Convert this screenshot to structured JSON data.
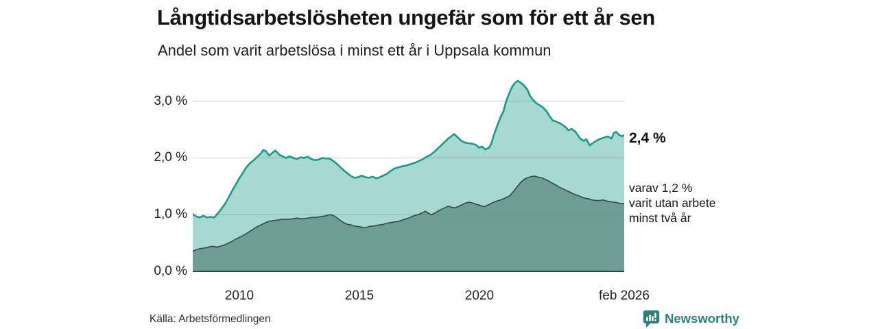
{
  "header": {
    "title": "Långtidsarbetslösheten ungefär som för ett år sen",
    "subtitle": "Andel som varit arbetslösa i minst ett år i Uppsala kommun"
  },
  "annotations": {
    "end_value_label": "2,4 %",
    "sub_label_lines": [
      "varav 1,2 %",
      "varit utan arbete",
      "minst två år"
    ]
  },
  "footer": {
    "source": "Källa: Arbetsförmedlingen",
    "brand": "Newsworthy"
  },
  "colors": {
    "series1_line": "#199a88",
    "series1_fill": "#a7d8d1",
    "series2_line": "#2d4b45",
    "series2_fill": "#6f9d96",
    "gridline": "#d4d4d4",
    "axis_line": "#3d3d3d",
    "brand_teal": "#2e7e7e",
    "text": "#151515"
  },
  "chart_data": {
    "type": "area",
    "title": "Långtidsarbetslösheten ungefär som för ett år sen",
    "subtitle": "Andel som varit arbetslösa i minst ett år i Uppsala kommun",
    "unit": "%",
    "grid": "horizontal",
    "x_range": [
      2008.06,
      2026.03
    ],
    "y_range": [
      0,
      3.5
    ],
    "x_ticks": [
      {
        "label": "2010",
        "year": 2010
      },
      {
        "label": "2015",
        "year": 2015
      },
      {
        "label": "2020",
        "year": 2020
      },
      {
        "label": "feb 2026",
        "year": 2026.03
      }
    ],
    "y_ticks": [
      {
        "label": "0,0 %",
        "value": 0
      },
      {
        "label": "1,0 %",
        "value": 1
      },
      {
        "label": "2,0 %",
        "value": 2
      },
      {
        "label": "3,0 %",
        "value": 3
      }
    ],
    "series": [
      {
        "name": "Andel arbetslösa minst ett år",
        "end_value": 2.4,
        "color": "#199a88",
        "fill": "#a7d8d1",
        "line_width": 2.6,
        "points": [
          [
            2008.06,
            1.01
          ],
          [
            2008.2,
            0.97
          ],
          [
            2008.35,
            0.95
          ],
          [
            2008.5,
            0.98
          ],
          [
            2008.65,
            0.95
          ],
          [
            2008.8,
            0.96
          ],
          [
            2008.95,
            0.95
          ],
          [
            2009.1,
            1.02
          ],
          [
            2009.25,
            1.1
          ],
          [
            2009.4,
            1.19
          ],
          [
            2009.55,
            1.3
          ],
          [
            2009.7,
            1.42
          ],
          [
            2009.85,
            1.53
          ],
          [
            2010.0,
            1.64
          ],
          [
            2010.15,
            1.74
          ],
          [
            2010.3,
            1.84
          ],
          [
            2010.45,
            1.91
          ],
          [
            2010.6,
            1.96
          ],
          [
            2010.75,
            2.02
          ],
          [
            2010.9,
            2.08
          ],
          [
            2011.0,
            2.14
          ],
          [
            2011.1,
            2.12
          ],
          [
            2011.25,
            2.04
          ],
          [
            2011.4,
            2.1
          ],
          [
            2011.5,
            2.13
          ],
          [
            2011.65,
            2.06
          ],
          [
            2011.8,
            2.03
          ],
          [
            2011.95,
            2.0
          ],
          [
            2012.1,
            2.03
          ],
          [
            2012.25,
            2.0
          ],
          [
            2012.4,
            1.98
          ],
          [
            2012.55,
            2.01
          ],
          [
            2012.7,
            2.0
          ],
          [
            2012.85,
            2.02
          ],
          [
            2013.0,
            1.98
          ],
          [
            2013.15,
            1.96
          ],
          [
            2013.3,
            1.97
          ],
          [
            2013.45,
            2.0
          ],
          [
            2013.6,
            1.99
          ],
          [
            2013.75,
            1.99
          ],
          [
            2013.9,
            1.95
          ],
          [
            2014.05,
            1.9
          ],
          [
            2014.2,
            1.84
          ],
          [
            2014.35,
            1.78
          ],
          [
            2014.5,
            1.73
          ],
          [
            2014.65,
            1.68
          ],
          [
            2014.8,
            1.65
          ],
          [
            2014.95,
            1.66
          ],
          [
            2015.1,
            1.69
          ],
          [
            2015.25,
            1.66
          ],
          [
            2015.4,
            1.65
          ],
          [
            2015.55,
            1.67
          ],
          [
            2015.7,
            1.64
          ],
          [
            2015.85,
            1.66
          ],
          [
            2016.0,
            1.69
          ],
          [
            2016.15,
            1.72
          ],
          [
            2016.3,
            1.77
          ],
          [
            2016.45,
            1.81
          ],
          [
            2016.6,
            1.83
          ],
          [
            2016.75,
            1.85
          ],
          [
            2016.9,
            1.86
          ],
          [
            2017.05,
            1.88
          ],
          [
            2017.2,
            1.9
          ],
          [
            2017.35,
            1.92
          ],
          [
            2017.5,
            1.95
          ],
          [
            2017.65,
            1.98
          ],
          [
            2017.8,
            2.02
          ],
          [
            2017.95,
            2.05
          ],
          [
            2018.1,
            2.1
          ],
          [
            2018.25,
            2.16
          ],
          [
            2018.4,
            2.22
          ],
          [
            2018.55,
            2.28
          ],
          [
            2018.7,
            2.34
          ],
          [
            2018.85,
            2.39
          ],
          [
            2018.95,
            2.42
          ],
          [
            2019.1,
            2.36
          ],
          [
            2019.25,
            2.3
          ],
          [
            2019.4,
            2.27
          ],
          [
            2019.55,
            2.26
          ],
          [
            2019.7,
            2.25
          ],
          [
            2019.85,
            2.23
          ],
          [
            2020.0,
            2.18
          ],
          [
            2020.1,
            2.2
          ],
          [
            2020.25,
            2.15
          ],
          [
            2020.4,
            2.18
          ],
          [
            2020.5,
            2.26
          ],
          [
            2020.6,
            2.4
          ],
          [
            2020.75,
            2.58
          ],
          [
            2020.9,
            2.74
          ],
          [
            2021.0,
            2.82
          ],
          [
            2021.1,
            2.98
          ],
          [
            2021.25,
            3.15
          ],
          [
            2021.4,
            3.28
          ],
          [
            2021.5,
            3.33
          ],
          [
            2021.6,
            3.36
          ],
          [
            2021.7,
            3.33
          ],
          [
            2021.85,
            3.28
          ],
          [
            2022.0,
            3.2
          ],
          [
            2022.1,
            3.1
          ],
          [
            2022.2,
            3.04
          ],
          [
            2022.35,
            2.97
          ],
          [
            2022.5,
            2.93
          ],
          [
            2022.65,
            2.89
          ],
          [
            2022.8,
            2.82
          ],
          [
            2022.95,
            2.72
          ],
          [
            2023.05,
            2.66
          ],
          [
            2023.2,
            2.64
          ],
          [
            2023.35,
            2.61
          ],
          [
            2023.5,
            2.57
          ],
          [
            2023.6,
            2.54
          ],
          [
            2023.7,
            2.49
          ],
          [
            2023.85,
            2.51
          ],
          [
            2024.0,
            2.46
          ],
          [
            2024.1,
            2.4
          ],
          [
            2024.2,
            2.34
          ],
          [
            2024.35,
            2.3
          ],
          [
            2024.45,
            2.33
          ],
          [
            2024.6,
            2.22
          ],
          [
            2024.75,
            2.27
          ],
          [
            2024.9,
            2.31
          ],
          [
            2025.05,
            2.34
          ],
          [
            2025.2,
            2.36
          ],
          [
            2025.35,
            2.38
          ],
          [
            2025.5,
            2.34
          ],
          [
            2025.6,
            2.44
          ],
          [
            2025.7,
            2.46
          ],
          [
            2025.8,
            2.41
          ],
          [
            2025.95,
            2.38
          ],
          [
            2026.03,
            2.4
          ]
        ]
      },
      {
        "name": "varav utan arbete minst två år",
        "end_value": 1.2,
        "color": "#2d4b45",
        "fill": "#6f9d96",
        "line_width": 1.6,
        "points": [
          [
            2008.06,
            0.36
          ],
          [
            2008.2,
            0.38
          ],
          [
            2008.35,
            0.4
          ],
          [
            2008.5,
            0.41
          ],
          [
            2008.65,
            0.42
          ],
          [
            2008.8,
            0.44
          ],
          [
            2008.95,
            0.44
          ],
          [
            2009.1,
            0.43
          ],
          [
            2009.25,
            0.45
          ],
          [
            2009.4,
            0.47
          ],
          [
            2009.55,
            0.5
          ],
          [
            2009.7,
            0.53
          ],
          [
            2009.85,
            0.57
          ],
          [
            2010.0,
            0.6
          ],
          [
            2010.15,
            0.63
          ],
          [
            2010.3,
            0.67
          ],
          [
            2010.45,
            0.71
          ],
          [
            2010.6,
            0.75
          ],
          [
            2010.75,
            0.79
          ],
          [
            2010.9,
            0.82
          ],
          [
            2011.05,
            0.85
          ],
          [
            2011.2,
            0.88
          ],
          [
            2011.35,
            0.89
          ],
          [
            2011.5,
            0.9
          ],
          [
            2011.65,
            0.91
          ],
          [
            2011.8,
            0.92
          ],
          [
            2011.95,
            0.92
          ],
          [
            2012.1,
            0.92
          ],
          [
            2012.25,
            0.93
          ],
          [
            2012.4,
            0.94
          ],
          [
            2012.55,
            0.93
          ],
          [
            2012.7,
            0.93
          ],
          [
            2012.85,
            0.94
          ],
          [
            2013.0,
            0.95
          ],
          [
            2013.15,
            0.95
          ],
          [
            2013.3,
            0.96
          ],
          [
            2013.45,
            0.97
          ],
          [
            2013.6,
            0.98
          ],
          [
            2013.75,
            1.0
          ],
          [
            2013.9,
            0.99
          ],
          [
            2014.05,
            0.95
          ],
          [
            2014.2,
            0.9
          ],
          [
            2014.35,
            0.86
          ],
          [
            2014.5,
            0.83
          ],
          [
            2014.65,
            0.82
          ],
          [
            2014.8,
            0.8
          ],
          [
            2014.95,
            0.79
          ],
          [
            2015.1,
            0.78
          ],
          [
            2015.25,
            0.77
          ],
          [
            2015.4,
            0.79
          ],
          [
            2015.55,
            0.8
          ],
          [
            2015.7,
            0.81
          ],
          [
            2015.85,
            0.82
          ],
          [
            2016.0,
            0.83
          ],
          [
            2016.15,
            0.85
          ],
          [
            2016.3,
            0.86
          ],
          [
            2016.45,
            0.87
          ],
          [
            2016.6,
            0.88
          ],
          [
            2016.75,
            0.9
          ],
          [
            2016.9,
            0.92
          ],
          [
            2017.05,
            0.94
          ],
          [
            2017.2,
            0.97
          ],
          [
            2017.35,
            0.99
          ],
          [
            2017.5,
            1.01
          ],
          [
            2017.65,
            1.04
          ],
          [
            2017.75,
            1.06
          ],
          [
            2017.9,
            1.02
          ],
          [
            2018.0,
            1.0
          ],
          [
            2018.15,
            1.03
          ],
          [
            2018.3,
            1.07
          ],
          [
            2018.45,
            1.1
          ],
          [
            2018.6,
            1.13
          ],
          [
            2018.7,
            1.15
          ],
          [
            2018.85,
            1.13
          ],
          [
            2019.0,
            1.12
          ],
          [
            2019.15,
            1.15
          ],
          [
            2019.3,
            1.18
          ],
          [
            2019.45,
            1.21
          ],
          [
            2019.6,
            1.22
          ],
          [
            2019.75,
            1.2
          ],
          [
            2019.9,
            1.18
          ],
          [
            2020.05,
            1.16
          ],
          [
            2020.2,
            1.14
          ],
          [
            2020.35,
            1.17
          ],
          [
            2020.5,
            1.2
          ],
          [
            2020.65,
            1.23
          ],
          [
            2020.8,
            1.25
          ],
          [
            2020.95,
            1.27
          ],
          [
            2021.1,
            1.3
          ],
          [
            2021.25,
            1.33
          ],
          [
            2021.4,
            1.4
          ],
          [
            2021.55,
            1.48
          ],
          [
            2021.7,
            1.56
          ],
          [
            2021.85,
            1.62
          ],
          [
            2022.0,
            1.65
          ],
          [
            2022.15,
            1.67
          ],
          [
            2022.3,
            1.68
          ],
          [
            2022.45,
            1.66
          ],
          [
            2022.6,
            1.65
          ],
          [
            2022.75,
            1.62
          ],
          [
            2022.9,
            1.59
          ],
          [
            2023.05,
            1.55
          ],
          [
            2023.2,
            1.52
          ],
          [
            2023.35,
            1.48
          ],
          [
            2023.5,
            1.45
          ],
          [
            2023.65,
            1.42
          ],
          [
            2023.8,
            1.39
          ],
          [
            2023.95,
            1.36
          ],
          [
            2024.1,
            1.34
          ],
          [
            2024.25,
            1.31
          ],
          [
            2024.4,
            1.29
          ],
          [
            2024.55,
            1.28
          ],
          [
            2024.7,
            1.26
          ],
          [
            2024.85,
            1.25
          ],
          [
            2025.0,
            1.25
          ],
          [
            2025.15,
            1.26
          ],
          [
            2025.3,
            1.24
          ],
          [
            2025.45,
            1.23
          ],
          [
            2025.6,
            1.22
          ],
          [
            2025.75,
            1.21
          ],
          [
            2025.9,
            1.19
          ],
          [
            2026.03,
            1.2
          ]
        ]
      }
    ]
  }
}
